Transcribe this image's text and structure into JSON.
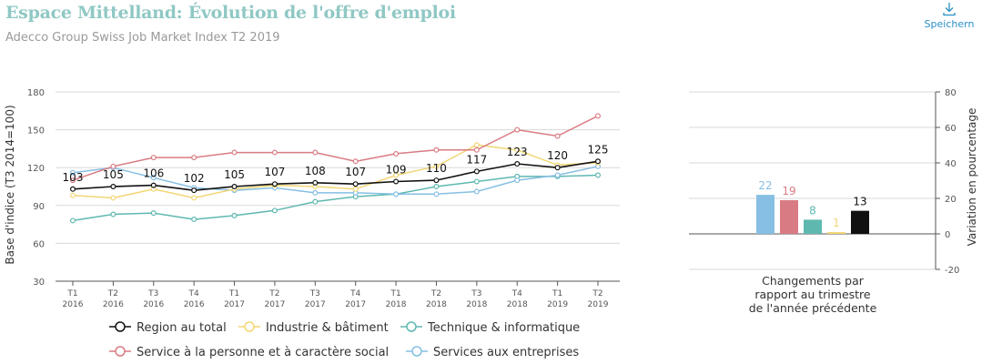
{
  "header": {
    "title": "Espace Mittelland: Évolution de l'offre d'emploi",
    "subtitle": "Adecco Group Swiss Job Market Index T2 2019",
    "save_label": "Speichern",
    "save_icon": "download-icon"
  },
  "colors": {
    "region": "#111111",
    "industrie": "#f2d675",
    "technique": "#5fb8b0",
    "service_personne": "#d97b83",
    "services_entreprises": "#86bfe3",
    "grid": "#d9d9d9",
    "axis": "#555555"
  },
  "chart_data": [
    {
      "type": "line",
      "ylabel": "Base d'indice (T3 2014=100)",
      "ylim": [
        30,
        180
      ],
      "yticks": [
        30,
        60,
        90,
        120,
        150,
        180
      ],
      "categories": [
        [
          "T1",
          "2016"
        ],
        [
          "T2",
          "2016"
        ],
        [
          "T3",
          "2016"
        ],
        [
          "T4",
          "2016"
        ],
        [
          "T1",
          "2017"
        ],
        [
          "T2",
          "2017"
        ],
        [
          "T3",
          "2017"
        ],
        [
          "T4",
          "2017"
        ],
        [
          "T1",
          "2018"
        ],
        [
          "T2",
          "2018"
        ],
        [
          "T3",
          "2018"
        ],
        [
          "T4",
          "2018"
        ],
        [
          "T1",
          "2019"
        ],
        [
          "T2",
          "2019"
        ]
      ],
      "grid": true,
      "legend_position": "bottom",
      "series": [
        {
          "key": "region",
          "name": "Region au total",
          "color": "#111111",
          "values": [
            103,
            105,
            106,
            102,
            105,
            107,
            108,
            107,
            109,
            110,
            117,
            123,
            120,
            125
          ],
          "labels": [
            "103",
            "105",
            "106",
            "102",
            "105",
            "107",
            "108",
            "107",
            "109",
            "110",
            "117",
            "123",
            "120",
            "125"
          ]
        },
        {
          "key": "industrie",
          "name": "Industrie & bâtiment",
          "color": "#f2d675",
          "values": [
            98,
            96,
            103,
            96,
            103,
            106,
            105,
            103,
            114,
            121,
            138,
            134,
            122,
            124
          ]
        },
        {
          "key": "technique",
          "name": "Technique & informatique",
          "color": "#5fb8b0",
          "values": [
            78,
            83,
            84,
            79,
            82,
            86,
            93,
            97,
            99,
            105,
            109,
            113,
            113,
            114
          ]
        },
        {
          "key": "service_personne",
          "name": "Service à la personne et à caractère social",
          "color": "#d97b83",
          "values": [
            110,
            121,
            128,
            128,
            132,
            132,
            132,
            125,
            131,
            134,
            134,
            150,
            145,
            161
          ]
        },
        {
          "key": "services_entreprises",
          "name": "Services aux entreprises",
          "color": "#86bfe3",
          "values": [
            116,
            120,
            112,
            104,
            102,
            104,
            100,
            100,
            99,
            99,
            101,
            110,
            114,
            121
          ]
        }
      ]
    },
    {
      "type": "bar",
      "xlabel": "Changements par rapport au trimestre de l'année précédente",
      "xlabel_lines": [
        "Changements par",
        "rapport au trimestre",
        "de l'année précédente"
      ],
      "ylabel": "Variation en pourcentage",
      "ylim": [
        -20,
        80
      ],
      "yticks": [
        -20,
        0,
        20,
        40,
        60,
        80
      ],
      "bars": [
        {
          "key": "services_entreprises",
          "value": 22,
          "label": "22",
          "color": "#86bfe3"
        },
        {
          "key": "service_personne",
          "value": 19,
          "label": "19",
          "color": "#d97b83"
        },
        {
          "key": "technique",
          "value": 8,
          "label": "8",
          "color": "#5fb8b0"
        },
        {
          "key": "industrie",
          "value": 1,
          "label": "1",
          "color": "#f2d675"
        },
        {
          "key": "region",
          "value": 13,
          "label": "13",
          "color": "#111111"
        }
      ]
    }
  ]
}
